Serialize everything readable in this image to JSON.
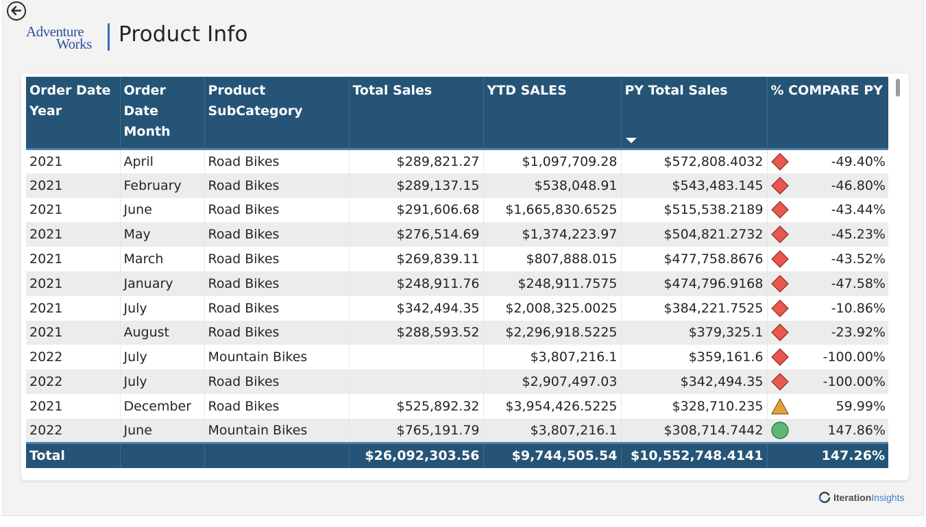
{
  "header": {
    "logo_line1": "Adventure",
    "logo_line2": "Works",
    "title": "Product Info"
  },
  "table": {
    "columns": [
      "Order Date Year",
      "Order Date Month",
      "Product SubCategory",
      "Total Sales",
      "YTD SALES",
      "PY Total Sales",
      "% COMPARE PY"
    ],
    "sorted_column": "PY Total Sales",
    "sort_direction": "descending",
    "rows": [
      {
        "year": "2021",
        "month": "April",
        "subcategory": "Road Bikes",
        "total_sales": "$289,821.27",
        "ytd_sales": "$1,097,709.28",
        "py_total_sales": "$572,808.4032",
        "kpi": "red-diamond",
        "compare": "-49.40%"
      },
      {
        "year": "2021",
        "month": "February",
        "subcategory": "Road Bikes",
        "total_sales": "$289,137.15",
        "ytd_sales": "$538,048.91",
        "py_total_sales": "$543,483.145",
        "kpi": "red-diamond",
        "compare": "-46.80%"
      },
      {
        "year": "2021",
        "month": "June",
        "subcategory": "Road Bikes",
        "total_sales": "$291,606.68",
        "ytd_sales": "$1,665,830.6525",
        "py_total_sales": "$515,538.2189",
        "kpi": "red-diamond",
        "compare": "-43.44%"
      },
      {
        "year": "2021",
        "month": "May",
        "subcategory": "Road Bikes",
        "total_sales": "$276,514.69",
        "ytd_sales": "$1,374,223.97",
        "py_total_sales": "$504,821.2732",
        "kpi": "red-diamond",
        "compare": "-45.23%"
      },
      {
        "year": "2021",
        "month": "March",
        "subcategory": "Road Bikes",
        "total_sales": "$269,839.11",
        "ytd_sales": "$807,888.015",
        "py_total_sales": "$477,758.8676",
        "kpi": "red-diamond",
        "compare": "-43.52%"
      },
      {
        "year": "2021",
        "month": "January",
        "subcategory": "Road Bikes",
        "total_sales": "$248,911.76",
        "ytd_sales": "$248,911.7575",
        "py_total_sales": "$474,796.9168",
        "kpi": "red-diamond",
        "compare": "-47.58%"
      },
      {
        "year": "2021",
        "month": "July",
        "subcategory": "Road Bikes",
        "total_sales": "$342,494.35",
        "ytd_sales": "$2,008,325.0025",
        "py_total_sales": "$384,221.7525",
        "kpi": "red-diamond",
        "compare": "-10.86%"
      },
      {
        "year": "2021",
        "month": "August",
        "subcategory": "Road Bikes",
        "total_sales": "$288,593.52",
        "ytd_sales": "$2,296,918.5225",
        "py_total_sales": "$379,325.1",
        "kpi": "red-diamond",
        "compare": "-23.92%"
      },
      {
        "year": "2022",
        "month": "July",
        "subcategory": "Mountain Bikes",
        "total_sales": "",
        "ytd_sales": "$3,807,216.1",
        "py_total_sales": "$359,161.6",
        "kpi": "red-diamond",
        "compare": "-100.00%"
      },
      {
        "year": "2022",
        "month": "July",
        "subcategory": "Road Bikes",
        "total_sales": "",
        "ytd_sales": "$2,907,497.03",
        "py_total_sales": "$342,494.35",
        "kpi": "red-diamond",
        "compare": "-100.00%"
      },
      {
        "year": "2021",
        "month": "December",
        "subcategory": "Road Bikes",
        "total_sales": "$525,892.32",
        "ytd_sales": "$3,954,426.5225",
        "py_total_sales": "$328,710.235",
        "kpi": "yellow-triangle",
        "compare": "59.99%"
      },
      {
        "year": "2022",
        "month": "June",
        "subcategory": "Mountain Bikes",
        "total_sales": "$765,191.79",
        "ytd_sales": "$3,807,216.1",
        "py_total_sales": "$308,714.7442",
        "kpi": "green-circle",
        "compare": "147.86%"
      }
    ],
    "totals": {
      "label": "Total",
      "total_sales": "$26,092,303.56",
      "ytd_sales": "$9,744,505.54",
      "py_total_sales": "$10,552,748.4141",
      "compare": "147.26%"
    }
  },
  "footer": {
    "brand_bold": "Iteration",
    "brand_light": "Insights"
  },
  "colors": {
    "header_bg": "#255477",
    "kpi_red": "#e8584f",
    "kpi_yellow": "#e0a33a",
    "kpi_green": "#5cb874",
    "logo_blue": "#2f4f9e"
  }
}
